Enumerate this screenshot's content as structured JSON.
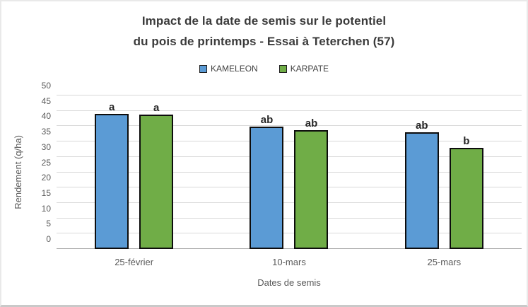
{
  "window": {
    "background": "#ffffff",
    "frame_border_color": "#c9c9c9"
  },
  "chart_data": {
    "type": "bar",
    "title": "Impact de la date de semis sur le potentiel du pois de printemps - Essai à Teterchen (57)",
    "title_lines": [
      "Impact de la date de semis sur le potentiel",
      "du pois de printemps - Essai à Teterchen (57)"
    ],
    "categories": [
      "25-février",
      "10-mars",
      "25-mars"
    ],
    "series": [
      {
        "name": "KAMELEON",
        "color": "#5B9BD5",
        "values": [
          44.1,
          39.8,
          38.1
        ],
        "significance_letters": [
          "a",
          "ab",
          "ab"
        ]
      },
      {
        "name": "KARPATE",
        "color": "#70AD47",
        "values": [
          43.7,
          38.7,
          33.0
        ],
        "significance_letters": [
          "a",
          "ab",
          "b"
        ]
      }
    ],
    "xlabel": "Dates de semis",
    "ylabel": "Rendement (q/ha)",
    "ylim": [
      0,
      50
    ],
    "ytick_step": 5,
    "grid": true,
    "legend_position": "top",
    "bar_outline_color": "#0d0d0d",
    "gridline_color": "#d9d9d9",
    "axis_text_color": "#595959",
    "title_color": "#3b3b3b"
  }
}
